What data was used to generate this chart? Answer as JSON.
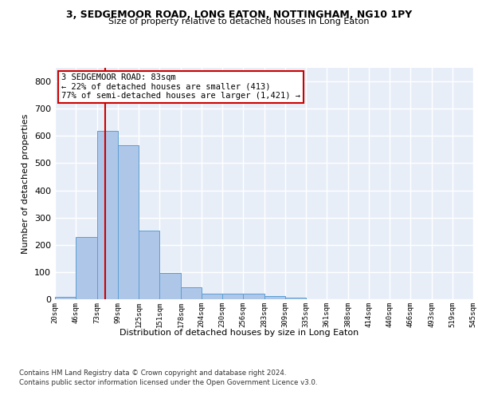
{
  "title1": "3, SEDGEMOOR ROAD, LONG EATON, NOTTINGHAM, NG10 1PY",
  "title2": "Size of property relative to detached houses in Long Eaton",
  "xlabel": "Distribution of detached houses by size in Long Eaton",
  "ylabel": "Number of detached properties",
  "bin_edges": [
    20,
    46,
    73,
    99,
    125,
    151,
    178,
    204,
    230,
    256,
    283,
    309,
    335,
    361,
    388,
    414,
    440,
    466,
    493,
    519,
    545
  ],
  "bar_heights": [
    10,
    228,
    618,
    567,
    252,
    97,
    43,
    20,
    20,
    20,
    12,
    6,
    0,
    0,
    0,
    0,
    0,
    0,
    0,
    0
  ],
  "bar_color": "#aec6e8",
  "bar_edgecolor": "#5a9fd4",
  "background_color": "#e8eef8",
  "grid_color": "#ffffff",
  "property_size": 83,
  "vline_color": "#cc0000",
  "annotation_text": "3 SEDGEMOOR ROAD: 83sqm\n← 22% of detached houses are smaller (413)\n77% of semi-detached houses are larger (1,421) →",
  "annotation_box_color": "#cc0000",
  "ylim": [
    0,
    850
  ],
  "yticks": [
    0,
    100,
    200,
    300,
    400,
    500,
    600,
    700,
    800
  ],
  "footer1": "Contains HM Land Registry data © Crown copyright and database right 2024.",
  "footer2": "Contains public sector information licensed under the Open Government Licence v3.0."
}
